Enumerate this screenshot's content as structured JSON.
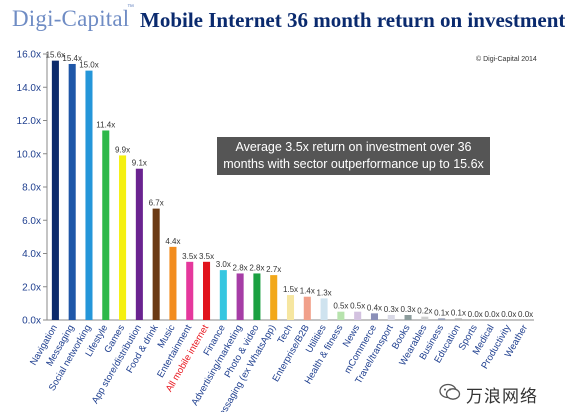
{
  "header": {
    "brand": "Digi-Capital",
    "brand_tm": "™",
    "title": "Mobile Internet 36 month return on investment"
  },
  "copyright": "© Digi-Capital 2014",
  "note": {
    "line1": "Average 3.5x return on investment over 36",
    "line2": "months with sector outperformance up to 15.6x"
  },
  "watermark": {
    "text": "万浪网络"
  },
  "colors": {
    "brand": "#6f8cc4",
    "title": "#0a2a6e",
    "axis_labels": "#1f3f8f",
    "highlight_label": "#e8161e",
    "note_bg": "#555555"
  },
  "chart_data": {
    "type": "bar",
    "title": "",
    "xlabel": "",
    "ylabel": "",
    "ylim": [
      0,
      16
    ],
    "yticks": [
      "0.0x",
      "2.0x",
      "4.0x",
      "6.0x",
      "8.0x",
      "10.0x",
      "12.0x",
      "14.0x",
      "16.0x"
    ],
    "ytick_values": [
      0,
      2,
      4,
      6,
      8,
      10,
      12,
      14,
      16
    ],
    "grid": false,
    "categories": [
      "Navigation",
      "Messaging",
      "Social networking",
      "Lifestyle",
      "Games",
      "App store/distribution",
      "Food & drink",
      "Music",
      "Entertainment",
      "All mobile internet",
      "Finance",
      "Advertising/marketing",
      "Photo & video",
      "Messaging (ex WhatsApp)",
      "Tech",
      "Enterprise/B2B",
      "Utilities",
      "Health & fitness",
      "News",
      "mCommerce",
      "Travel/transport",
      "Books",
      "Wearables",
      "Business",
      "Education",
      "Sports",
      "Medical",
      "Productivity",
      "Weather"
    ],
    "values": [
      15.6,
      15.4,
      15.0,
      11.4,
      9.9,
      9.1,
      6.7,
      4.4,
      3.5,
      3.5,
      3.0,
      2.8,
      2.8,
      2.7,
      1.5,
      1.4,
      1.3,
      0.5,
      0.5,
      0.4,
      0.3,
      0.3,
      0.2,
      0.1,
      0.1,
      0.0,
      0.0,
      0.0,
      0.0
    ],
    "data_labels": [
      "15.6x",
      "15.4x",
      "15.0x",
      "11.4x",
      "9.9x",
      "9.1x",
      "6.7x",
      "4.4x",
      "3.5x",
      "3.5x",
      "3.0x",
      "2.8x",
      "2.8x",
      "2.7x",
      "1.5x",
      "1.4x",
      "1.3x",
      "0.5x",
      "0.5x",
      "0.4x",
      "0.3x",
      "0.3x",
      "0.2x",
      "0.1x",
      "0.1x",
      "0.0x",
      "0.0x",
      "0.0x",
      "0.0x"
    ],
    "bar_colors": [
      "#0b2a6b",
      "#1f57a8",
      "#2596d9",
      "#2eb84a",
      "#f5f010",
      "#6a2390",
      "#6b3a14",
      "#f28c1e",
      "#e5389c",
      "#e1131c",
      "#35c6e0",
      "#a63da6",
      "#1aa041",
      "#f2a81a",
      "#f6e6a0",
      "#f1a08a",
      "#cfe3ef",
      "#b7e3ad",
      "#d3c2e0",
      "#8a8fb8",
      "#d9d9e6",
      "#8c9c9c",
      "#d0d0d0",
      "#9aa2b8",
      "#b8b8b8",
      "#c8c8c8",
      "#c8c8c8",
      "#c8c8c8",
      "#c8c8c8"
    ],
    "highlight_index": 9
  }
}
